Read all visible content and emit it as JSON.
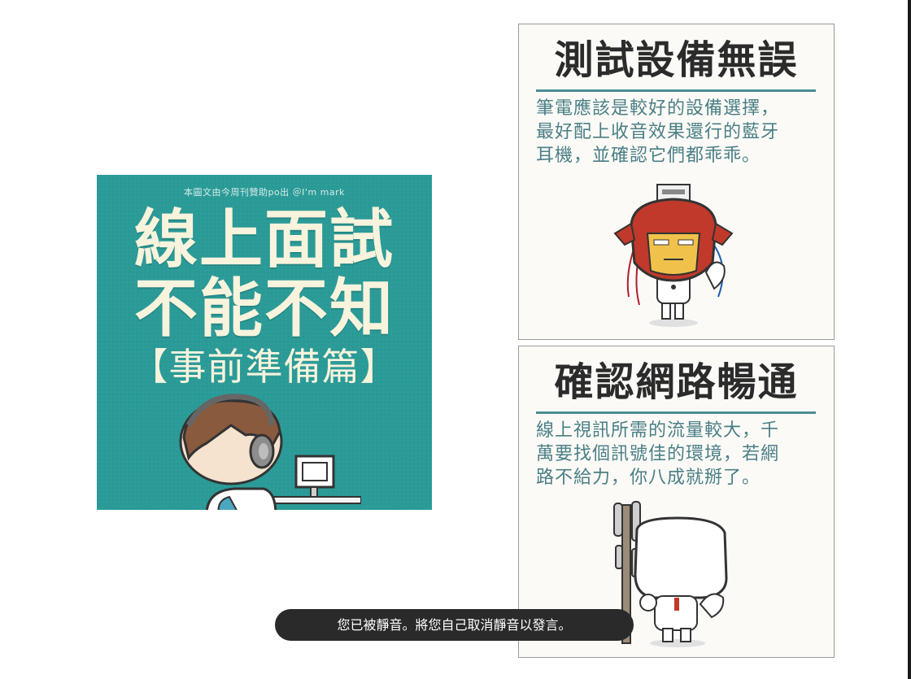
{
  "cover": {
    "credit": "本圖文由今周刊贊助po出 ＠I'm mark",
    "title_line1": "線上面試",
    "title_line2": "不能不知",
    "subtitle": "【事前準備篇】"
  },
  "cards": [
    {
      "heading": "測試設備無誤",
      "body_lines": [
        "筆電應該是較好的設備選擇，",
        "最好配上收音效果還行的藍牙",
        "耳機，並確認它們都乖乖。"
      ]
    },
    {
      "heading": "確認網路暢通",
      "body_lines": [
        "線上視訊所需的流量較大，千",
        "萬要找個訊號佳的環境，若網",
        "路不給力，你八成就掰了。"
      ]
    }
  ],
  "toast": {
    "message": "您已被靜音。將您自己取消靜音以發言。"
  },
  "colors": {
    "cover_bg": "#2a9a97",
    "cover_text": "#f8f3dc",
    "card_accent": "#4a8d92",
    "card_body_text": "#4a7f86",
    "toast_bg": "#2a2a2a"
  }
}
